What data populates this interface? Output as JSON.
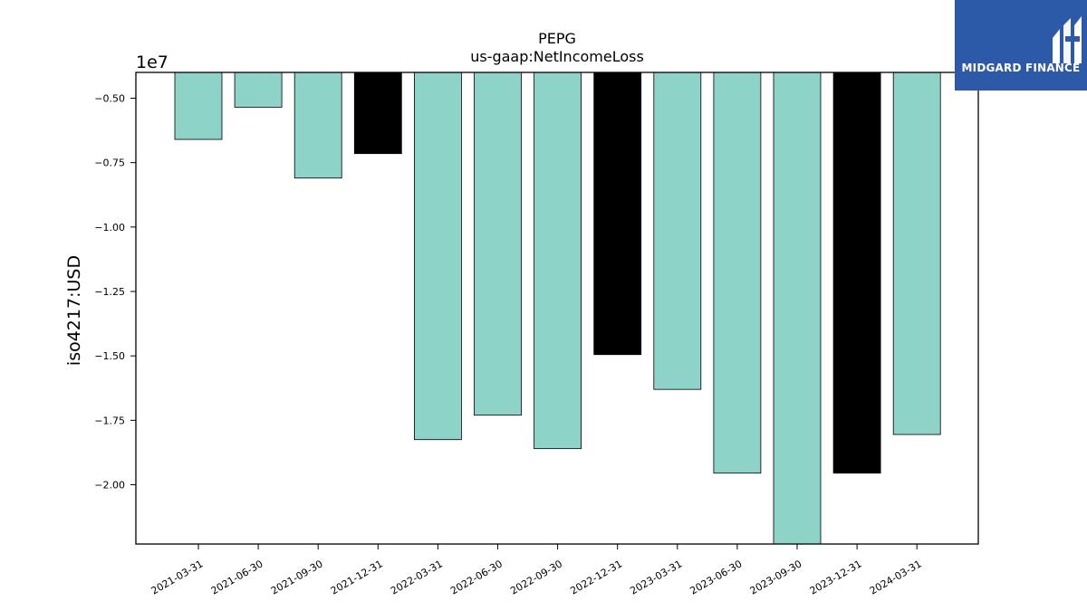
{
  "chart_data": {
    "type": "bar",
    "title": "PEPG",
    "subtitle": "us-gaap:NetIncomeLoss",
    "ylabel": "iso4217:USD",
    "offset_text": "1e7",
    "categories": [
      "2021-03-31",
      "2021-06-30",
      "2021-09-30",
      "2021-12-31",
      "2022-03-31",
      "2022-06-30",
      "2022-09-30",
      "2022-12-31",
      "2023-03-31",
      "2023-06-30",
      "2023-09-30",
      "2023-12-31",
      "2024-03-31"
    ],
    "values": [
      -6600000,
      -5350000,
      -8100000,
      -7150000,
      -18250000,
      -17300000,
      -18600000,
      -14950000,
      -16300000,
      -19550000,
      -22300000,
      -19550000,
      -18050000
    ],
    "bar_colors": [
      "#8dd3c7",
      "#8dd3c7",
      "#8dd3c7",
      "#000000",
      "#8dd3c7",
      "#8dd3c7",
      "#8dd3c7",
      "#000000",
      "#8dd3c7",
      "#8dd3c7",
      "#8dd3c7",
      "#000000",
      "#8dd3c7"
    ],
    "yticks": [
      -5000000,
      -7500000,
      -10000000,
      -12500000,
      -15000000,
      -17500000,
      -20000000
    ],
    "ytick_labels": [
      "−0.50",
      "−0.75",
      "−1.00",
      "−1.25",
      "−1.50",
      "−1.75",
      "−2.00"
    ],
    "ylim": [
      -22300000,
      -4000000
    ],
    "grid": false
  },
  "logo": {
    "text": "MIDGARD FINANCE",
    "color": "#2d5aa8"
  }
}
